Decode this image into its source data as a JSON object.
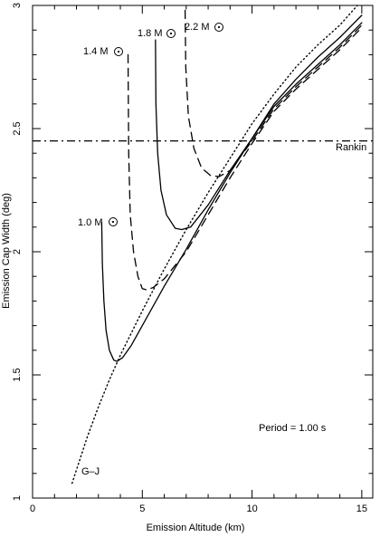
{
  "chart_data": {
    "type": "line",
    "title": "",
    "xlabel": "Emission Altitude (km)",
    "ylabel": "Emission Cap Width (deg)",
    "xlim": [
      0,
      15.5
    ],
    "ylim": [
      1,
      3
    ],
    "grid": false,
    "xticks": [
      0,
      5,
      10,
      15
    ],
    "yticks": [
      1,
      1.5,
      2,
      2.5,
      3
    ],
    "xtick_labels": [
      "0",
      "5",
      "10",
      "15"
    ],
    "ytick_labels": [
      "1",
      "1.5",
      "2",
      "2.5",
      "3"
    ],
    "series": [
      {
        "name": "1.0 M⊙",
        "style": "solid",
        "color": "#000000",
        "points": [
          [
            3.15,
            2.12
          ],
          [
            3.18,
            1.95
          ],
          [
            3.25,
            1.8
          ],
          [
            3.35,
            1.68
          ],
          [
            3.5,
            1.6
          ],
          [
            3.7,
            1.56
          ],
          [
            3.85,
            1.555
          ],
          [
            4.1,
            1.57
          ],
          [
            4.5,
            1.62
          ],
          [
            5.0,
            1.7
          ],
          [
            6.0,
            1.86
          ],
          [
            7.0,
            2.01
          ],
          [
            8.0,
            2.17
          ],
          [
            9.0,
            2.32
          ],
          [
            10.0,
            2.46
          ],
          [
            11.0,
            2.59
          ],
          [
            12.0,
            2.68
          ],
          [
            13.0,
            2.76
          ],
          [
            14.0,
            2.84
          ],
          [
            15.0,
            2.93
          ]
        ]
      },
      {
        "name": "1.4 M⊙",
        "style": "dashed",
        "color": "#000000",
        "points": [
          [
            4.35,
            2.8
          ],
          [
            4.38,
            2.4
          ],
          [
            4.45,
            2.15
          ],
          [
            4.6,
            2.0
          ],
          [
            4.8,
            1.9
          ],
          [
            5.0,
            1.85
          ],
          [
            5.2,
            1.845
          ],
          [
            5.5,
            1.855
          ],
          [
            6.0,
            1.89
          ],
          [
            7.0,
            2.0
          ],
          [
            8.0,
            2.15
          ],
          [
            9.0,
            2.3
          ],
          [
            10.0,
            2.44
          ],
          [
            11.0,
            2.57
          ],
          [
            12.0,
            2.66
          ],
          [
            13.0,
            2.74
          ],
          [
            14.0,
            2.82
          ],
          [
            15.0,
            2.91
          ]
        ]
      },
      {
        "name": "1.8 M⊙",
        "style": "solid",
        "color": "#000000",
        "points": [
          [
            5.6,
            2.86
          ],
          [
            5.62,
            2.6
          ],
          [
            5.7,
            2.4
          ],
          [
            5.85,
            2.25
          ],
          [
            6.1,
            2.15
          ],
          [
            6.5,
            2.095
          ],
          [
            6.8,
            2.09
          ],
          [
            7.2,
            2.1
          ],
          [
            8.0,
            2.19
          ],
          [
            9.0,
            2.33
          ],
          [
            10.0,
            2.46
          ],
          [
            11.0,
            2.6
          ],
          [
            12.0,
            2.7
          ],
          [
            13.0,
            2.79
          ],
          [
            14.0,
            2.87
          ],
          [
            15.0,
            2.96
          ]
        ]
      },
      {
        "name": "2.2 M⊙",
        "style": "dashed",
        "color": "#000000",
        "points": [
          [
            6.95,
            2.98
          ],
          [
            6.98,
            2.75
          ],
          [
            7.1,
            2.55
          ],
          [
            7.35,
            2.42
          ],
          [
            7.7,
            2.34
          ],
          [
            8.1,
            2.31
          ],
          [
            8.5,
            2.305
          ],
          [
            9.0,
            2.33
          ],
          [
            10.0,
            2.45
          ],
          [
            11.0,
            2.58
          ],
          [
            12.0,
            2.67
          ],
          [
            13.0,
            2.75
          ],
          [
            14.0,
            2.83
          ],
          [
            15.0,
            2.92
          ]
        ]
      },
      {
        "name": "G–J",
        "style": "dotted",
        "color": "#000000",
        "points": [
          [
            1.8,
            1.06
          ],
          [
            2.5,
            1.25
          ],
          [
            3.0,
            1.37
          ],
          [
            3.5,
            1.48
          ],
          [
            4.0,
            1.58
          ],
          [
            5.0,
            1.76
          ],
          [
            6.0,
            1.93
          ],
          [
            7.0,
            2.09
          ],
          [
            8.0,
            2.24
          ],
          [
            9.0,
            2.38
          ],
          [
            10.0,
            2.52
          ],
          [
            11.0,
            2.64
          ],
          [
            12.0,
            2.75
          ],
          [
            13.0,
            2.84
          ],
          [
            14.0,
            2.92
          ],
          [
            14.8,
            3.0
          ]
        ]
      }
    ],
    "hline": {
      "name": "Rankin",
      "y": 2.45,
      "style": "dashdot"
    },
    "labels": {
      "m10": "1.0 M",
      "m14": "1.4 M",
      "m18": "1.8 M",
      "m22": "2.2 M",
      "gj": "G–J",
      "rankin": "Rankin",
      "period": "Period =  1.00 s"
    }
  }
}
